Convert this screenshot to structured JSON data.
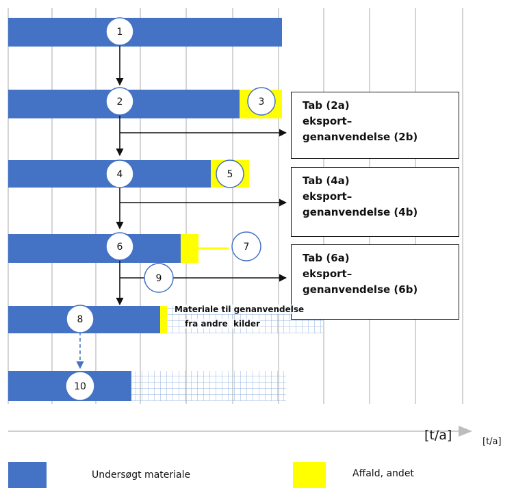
{
  "steps": [
    "1",
    "2",
    "3",
    "4",
    "5",
    "6",
    "7",
    "8",
    "9",
    "10"
  ],
  "boxes": [
    {
      "line1": "Tab (2a)",
      "line2": "eksport–",
      "line3": "genanvendelse (2b)"
    },
    {
      "line1": "Tab (4a)",
      "line2": "eksport–",
      "line3": "genanvendelse (4b)"
    },
    {
      "line1": "Tab (6a)",
      "line2": "eksport–",
      "line3": "genanvendelse (6b)"
    }
  ],
  "other_sources": {
    "line1": "Materiale til genanvendelse",
    "line2": "fra andre  kilder"
  },
  "axis": {
    "unit_large": "[t/a]",
    "unit_small": "[t/a]"
  },
  "legend": {
    "investigated": "Undersøgt materiale",
    "waste": "Affald, andet"
  },
  "colors": {
    "investigated": "#4472C4",
    "waste": "#FFFF00",
    "grid": "#b7b7b7",
    "hatch": "#8fb0dc"
  }
}
